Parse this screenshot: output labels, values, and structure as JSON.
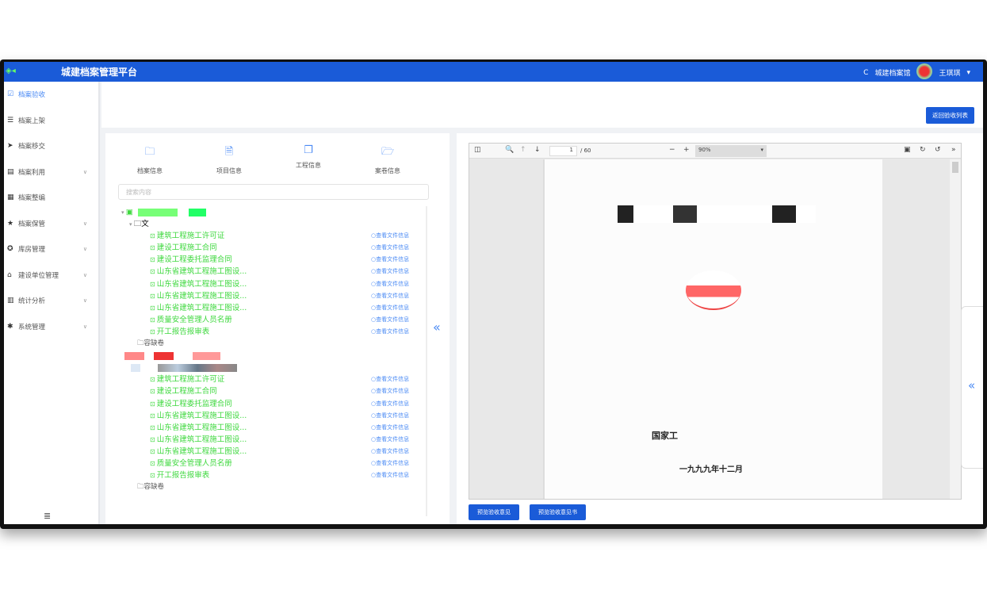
{
  "header": {
    "title": "城建档案管理平台",
    "refresh_icon": "C",
    "org": "城建档案馆",
    "user": "王琪琪"
  },
  "sidebar": {
    "items": [
      {
        "label": "档案验收",
        "icon": "check-icon",
        "active": true
      },
      {
        "label": "档案上架",
        "icon": "list-icon"
      },
      {
        "label": "档案移交",
        "icon": "send-icon"
      },
      {
        "label": "档案利用",
        "icon": "book-icon",
        "chevron": true
      },
      {
        "label": "档案整编",
        "icon": "folder-icon"
      },
      {
        "label": "档案保管",
        "icon": "star-icon",
        "chevron": true
      },
      {
        "label": "库房管理",
        "icon": "warehouse-icon",
        "chevron": true
      },
      {
        "label": "建设单位管理",
        "icon": "building-icon",
        "chevron": true
      },
      {
        "label": "统计分析",
        "icon": "chart-icon",
        "chevron": true
      },
      {
        "label": "系统管理",
        "icon": "gear-icon",
        "chevron": true
      }
    ]
  },
  "toolbar": {
    "back_label": "返回验收列表"
  },
  "tabs": [
    {
      "label": "档案信息"
    },
    {
      "label": "项目信息"
    },
    {
      "label": "工程信息"
    },
    {
      "label": "案卷信息"
    }
  ],
  "search": {
    "placeholder": "搜索内容"
  },
  "tree": {
    "group1_folder": "文",
    "files": [
      "建筑工程施工许可证",
      "建设工程施工合同",
      "建设工程委托监理合同",
      "山东省建筑工程施工图设...",
      "山东省建筑工程施工图设...",
      "山东省建筑工程施工图设...",
      "山东省建筑工程施工图设...",
      "质量安全管理人员名册",
      "开工报告报审表"
    ],
    "link": "查看文件信息",
    "missing_folder": "容缺卷"
  },
  "viewer": {
    "page": "1",
    "total": "/ 60",
    "zoom": "90%",
    "doc_line1": "国家工",
    "doc_date": "一九九九年十二月"
  },
  "buttons": {
    "preview_opinion": "预览验收意见",
    "preview_opinion_book": "预览验收意见书"
  }
}
